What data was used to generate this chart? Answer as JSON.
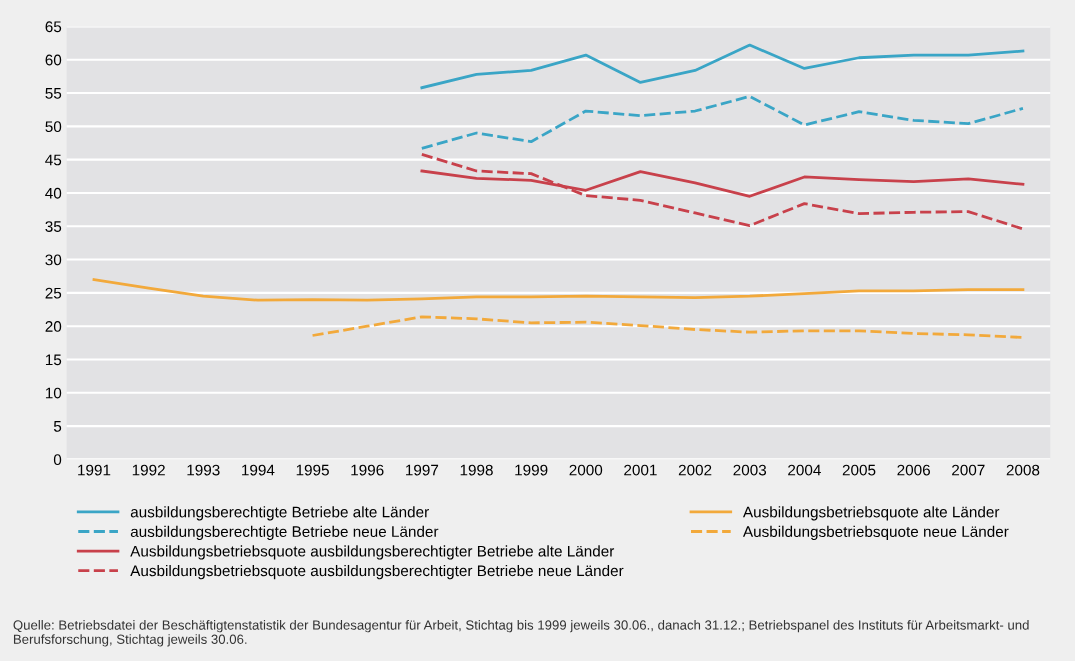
{
  "chart_data": {
    "type": "line",
    "categories": [
      "1991",
      "1992",
      "1993",
      "1994",
      "1995",
      "1996",
      "1997",
      "1998",
      "1999",
      "2000",
      "2001",
      "2002",
      "2003",
      "2004",
      "2005",
      "2006",
      "2007",
      "2008"
    ],
    "series": [
      {
        "name": "ausbildungsberechtigte Betriebe alte Länder",
        "color": "#3aa5c6",
        "line_style": "solid",
        "values": [
          null,
          null,
          null,
          null,
          null,
          null,
          55.8,
          57.8,
          58.4,
          60.7,
          56.6,
          58.4,
          62.2,
          58.7,
          60.3,
          60.7,
          60.7,
          61.3
        ]
      },
      {
        "name": "ausbildungsberechtigte Betriebe neue Länder",
        "color": "#3aa5c6",
        "line_style": "dashed",
        "values": [
          null,
          null,
          null,
          null,
          null,
          null,
          46.7,
          49.0,
          47.7,
          52.3,
          51.6,
          52.3,
          54.5,
          50.2,
          52.2,
          50.9,
          50.4,
          52.7
        ]
      },
      {
        "name": "Ausbildungsbetriebsquote alte Länder",
        "color": "#f2a93b",
        "line_style": "solid",
        "values": [
          27.0,
          25.7,
          24.5,
          23.9,
          24.0,
          23.9,
          24.1,
          24.4,
          24.4,
          24.5,
          24.4,
          24.3,
          24.5,
          24.9,
          25.3,
          25.3,
          25.5,
          25.5
        ]
      },
      {
        "name": "Ausbildungsbetriebsquote neue Länder",
        "color": "#f2a93b",
        "line_style": "dashed",
        "values": [
          null,
          null,
          null,
          null,
          18.6,
          20.0,
          21.4,
          21.1,
          20.5,
          20.6,
          20.1,
          19.5,
          19.1,
          19.3,
          19.3,
          18.9,
          18.7,
          18.3
        ]
      },
      {
        "name": "Ausbildungsbetriebsquote ausbildungsberechtigter Betriebe alte Länder",
        "color": "#c8414b",
        "line_style": "solid",
        "values": [
          null,
          null,
          null,
          null,
          null,
          null,
          43.3,
          42.2,
          41.9,
          40.4,
          43.2,
          41.5,
          39.5,
          42.4,
          42.0,
          41.7,
          42.1,
          41.3
        ]
      },
      {
        "name": "Ausbildungsbetriebsquote ausbildungsberechtigter Betriebe neue Länder",
        "color": "#c8414b",
        "line_style": "dashed",
        "values": [
          null,
          null,
          null,
          null,
          null,
          null,
          45.8,
          43.3,
          42.9,
          39.6,
          38.9,
          37.0,
          35.1,
          38.4,
          36.9,
          37.1,
          37.2,
          34.6
        ]
      }
    ],
    "ylim": [
      0,
      65
    ],
    "yticks": [
      0,
      5,
      10,
      15,
      20,
      25,
      30,
      35,
      40,
      45,
      50,
      55,
      60,
      65
    ],
    "grid": "y",
    "legend": "bottom",
    "marker": "none",
    "annotations": [
      "Quelle: Betriebsdatei der Beschäftigtenstatistik der Bundesagentur für Arbeit, Stichtag bis 1999 jeweils 30.06., danach 31.12.; Betriebspanel des Instituts für Arbeitsmarkt- und Berufsforschung, Stichtag jeweils 30.06."
    ]
  }
}
